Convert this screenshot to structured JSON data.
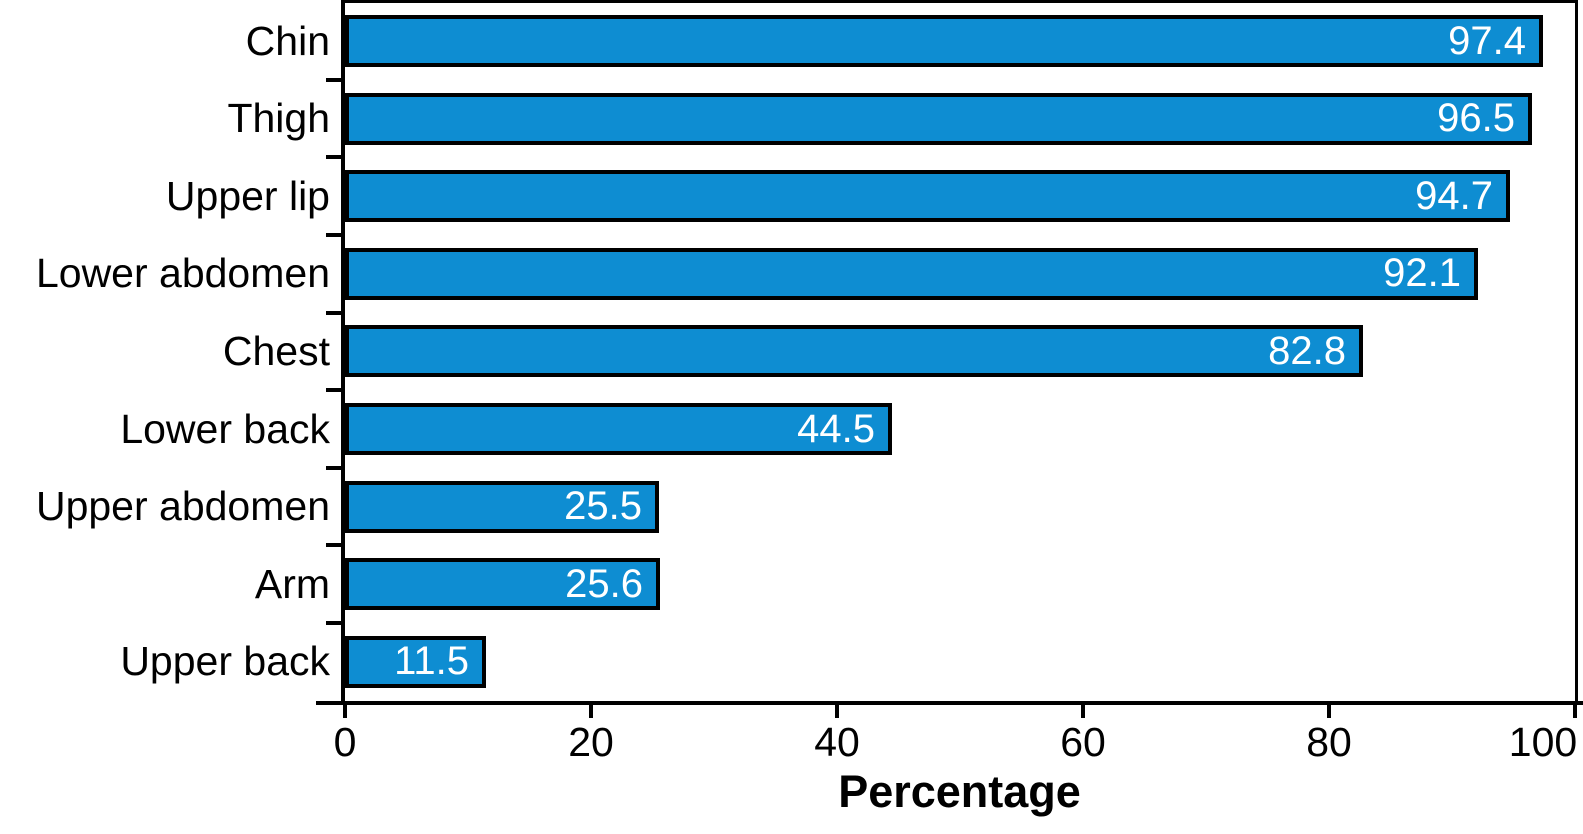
{
  "chart_data": {
    "type": "bar",
    "orientation": "horizontal",
    "title": "",
    "xlabel": "Percentage",
    "ylabel": "",
    "categories": [
      "Chin",
      "Thigh",
      "Upper lip",
      "Lower abdomen",
      "Chest",
      "Lower back",
      "Upper abdomen",
      "Arm",
      "Upper back"
    ],
    "values": [
      97.4,
      96.5,
      94.7,
      92.1,
      82.8,
      44.5,
      25.5,
      25.6,
      11.5
    ],
    "value_labels": [
      "97.4",
      "96.5",
      "94.7",
      "92.1",
      "82.8",
      "44.5",
      "25.5",
      "25.6",
      "11.5"
    ],
    "x_ticks": [
      0,
      20,
      40,
      60,
      80,
      100
    ],
    "x_tick_labels": [
      "0",
      "20",
      "40",
      "60",
      "80",
      "100"
    ],
    "xlim": [
      0,
      100
    ],
    "grid": false,
    "legend": false,
    "bar_color": "#0e8dd2",
    "bar_border_color": "#000000",
    "value_label_color": "#ffffff",
    "axis_color": "#000000",
    "text_color": "#000000"
  }
}
